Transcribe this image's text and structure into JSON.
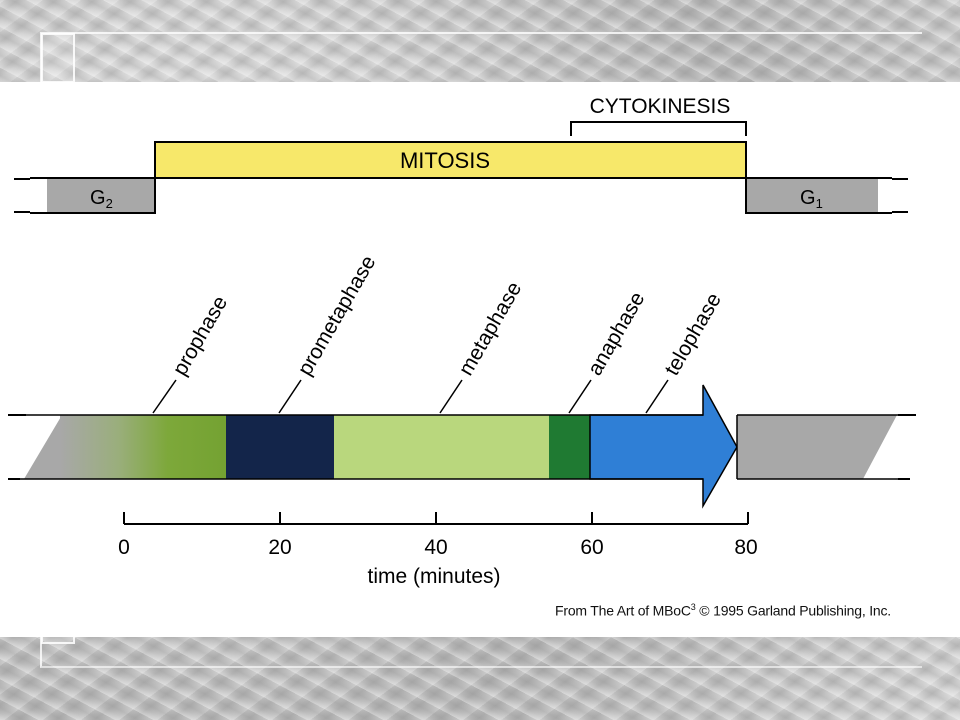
{
  "labels": {
    "cytokinesis": "CYTOKINESIS",
    "mitosis": "MITOSIS",
    "g2_letter": "G",
    "g2_sub": "2",
    "g1_letter": "G",
    "g1_sub": "1"
  },
  "phases": [
    {
      "name": "prophase",
      "color": "#7da83a"
    },
    {
      "name": "prometaphase",
      "color": "#13254a"
    },
    {
      "name": "metaphase",
      "color": "#b9d77d"
    },
    {
      "name": "anaphase",
      "color": "#1f7a32"
    },
    {
      "name": "telophase",
      "color": "#2f7fd6"
    }
  ],
  "colors": {
    "interphase_gray": "#a8a8a8",
    "mitosis_yellow": "#f7e86a"
  },
  "time_axis": {
    "ticks": [
      "0",
      "20",
      "40",
      "60",
      "80"
    ],
    "label": "time (minutes)"
  },
  "credit": {
    "prefix": "From The Art of MBoC",
    "superscript": "3",
    "suffix": " © 1995 Garland Publishing, Inc."
  }
}
